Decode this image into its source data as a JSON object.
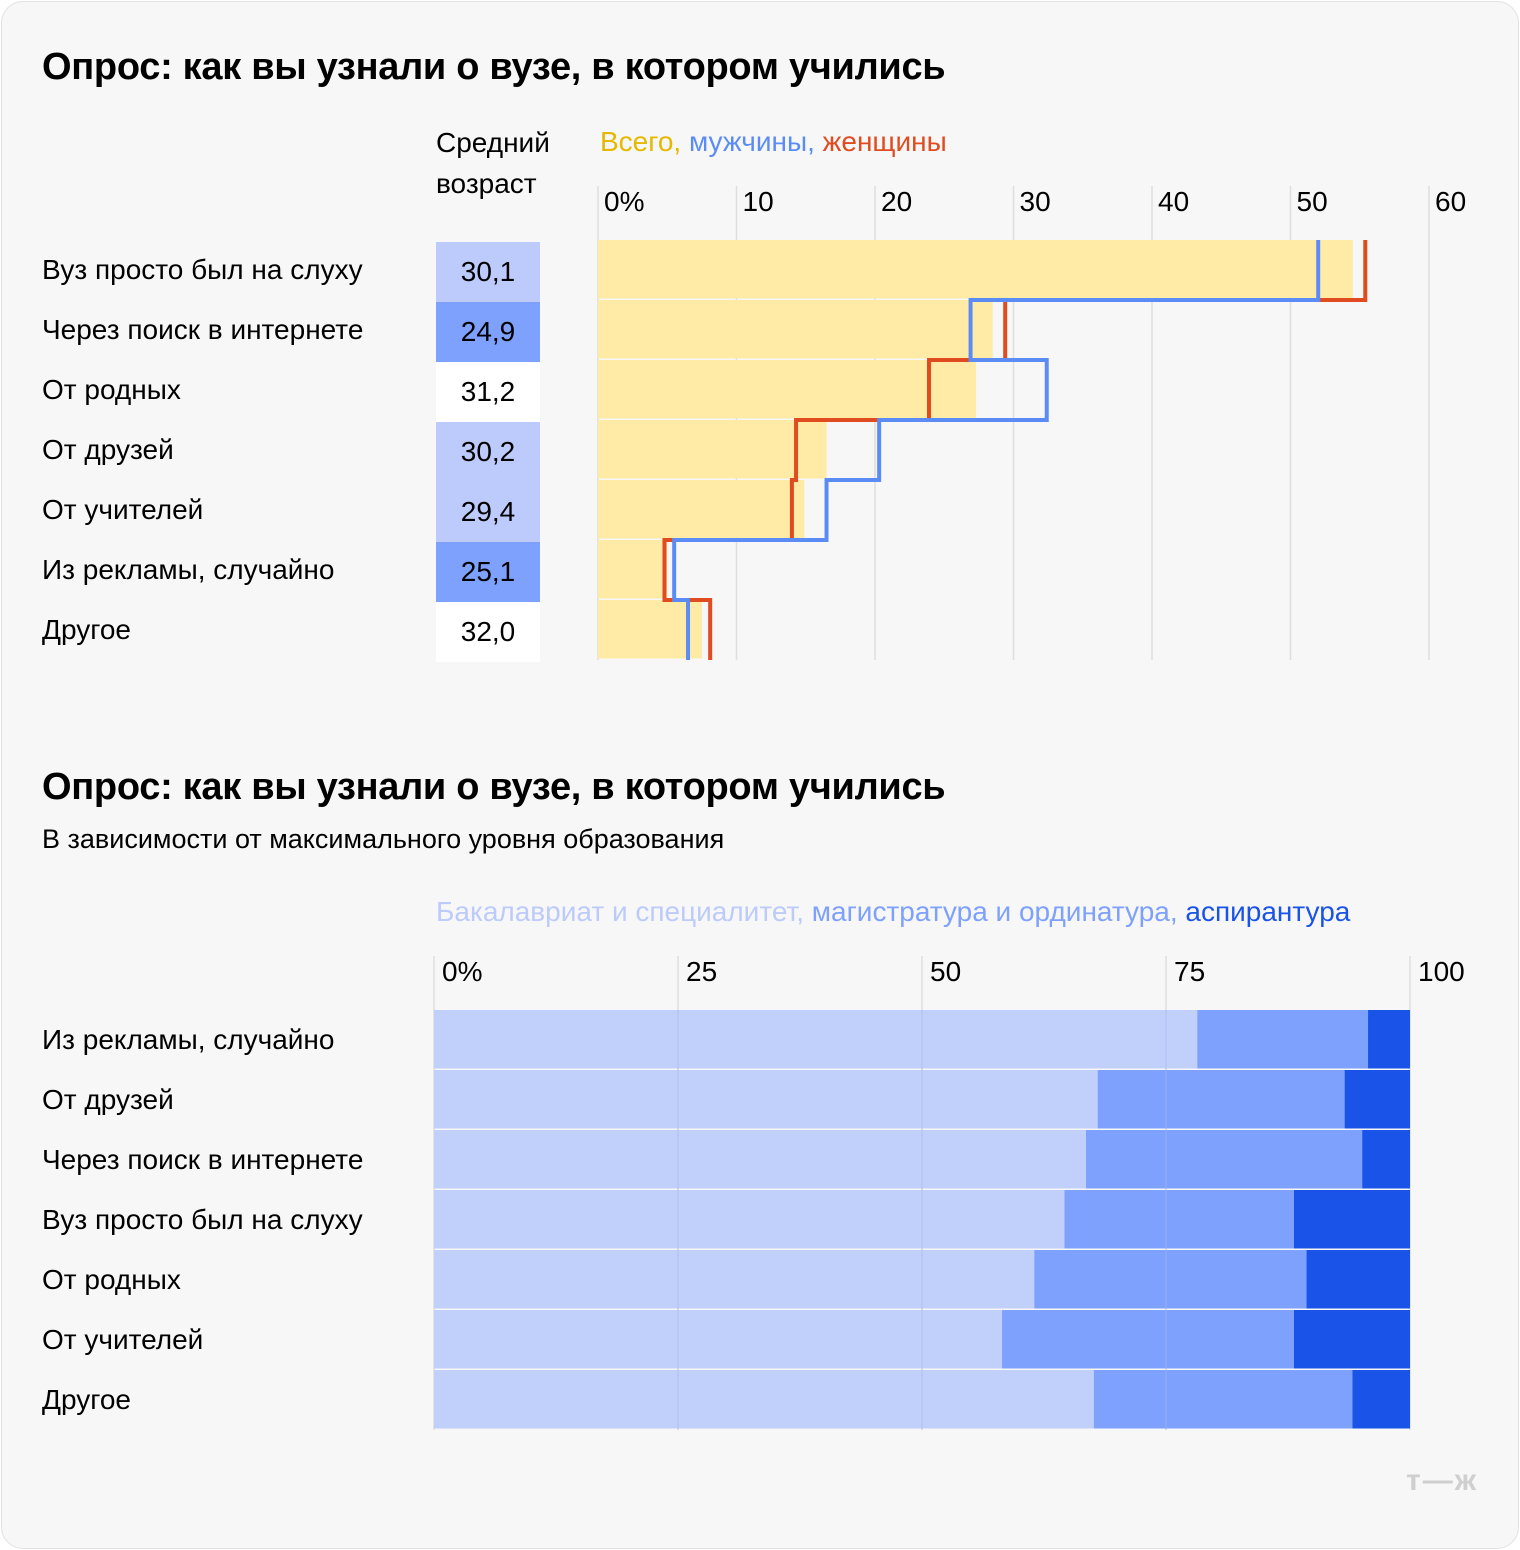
{
  "colors": {
    "total": "#ffeba5",
    "total_text": "#e6b800",
    "men": "#5b8cf6",
    "women": "#e04b1f",
    "age_high": "#7ea1fd",
    "age_mid": "#bccbfb",
    "age_low": "#ffffff",
    "bachelor": "#bccbfb",
    "master": "#7ea1fd",
    "phd": "#1a53e8",
    "grid": "#dedede"
  },
  "logo": "т—ж",
  "chart_data": [
    {
      "type": "bar",
      "title": "Опрос: как вы узнали о вузе, в котором учились",
      "age_header": [
        "Средний",
        "возраст"
      ],
      "legend": [
        "Всего,",
        "мужчины,",
        "женщины"
      ],
      "x_ticks": [
        "0%",
        "10",
        "20",
        "30",
        "40",
        "50",
        "60"
      ],
      "xlim": [
        0,
        60
      ],
      "categories": [
        "Вуз просто был на слуху",
        "Через поиск в интернете",
        "От родных",
        "От друзей",
        "От учителей",
        "Из рекламы, случайно",
        "Другое"
      ],
      "average_age": [
        "30,1",
        "24,9",
        "31,2",
        "30,2",
        "29,4",
        "25,1",
        "32,0"
      ],
      "age_level": [
        "mid",
        "high",
        "low",
        "mid",
        "mid",
        "high",
        "low"
      ],
      "series": [
        {
          "name": "Всего",
          "values": [
            54.5,
            28.5,
            27.3,
            16.5,
            14.9,
            5.0,
            7.5
          ]
        },
        {
          "name": "мужчины",
          "values": [
            52.0,
            26.9,
            32.4,
            20.3,
            16.5,
            5.5,
            6.5
          ]
        },
        {
          "name": "женщины",
          "values": [
            55.4,
            29.4,
            23.9,
            14.3,
            14.0,
            4.8,
            8.1
          ]
        }
      ]
    },
    {
      "type": "bar",
      "stacked": true,
      "title": "Опрос: как вы узнали о вузе, в котором учились",
      "subtitle": "В зависимости от максимального уровня образования",
      "legend": [
        "Бакалавриат и специалитет,",
        "магистратура и ординатура,",
        "аспирантура"
      ],
      "x_ticks": [
        "0%",
        "25",
        "50",
        "75",
        "100"
      ],
      "xlim": [
        0,
        100
      ],
      "categories": [
        "Из рекламы, случайно",
        "От друзей",
        "Через поиск в интернете",
        "Вуз просто был на слуху",
        "От родных",
        "От учителей",
        "Другое"
      ],
      "series": [
        {
          "name": "Бакалавриат и специалитет",
          "values": [
            78.2,
            68.0,
            66.8,
            64.6,
            61.5,
            58.2,
            67.6
          ]
        },
        {
          "name": "магистратура и ординатура",
          "values": [
            17.5,
            25.3,
            28.3,
            23.5,
            27.9,
            29.9,
            26.5
          ]
        },
        {
          "name": "аспирантура",
          "values": [
            4.3,
            6.7,
            4.9,
            11.9,
            10.6,
            11.9,
            5.9
          ]
        }
      ]
    }
  ]
}
